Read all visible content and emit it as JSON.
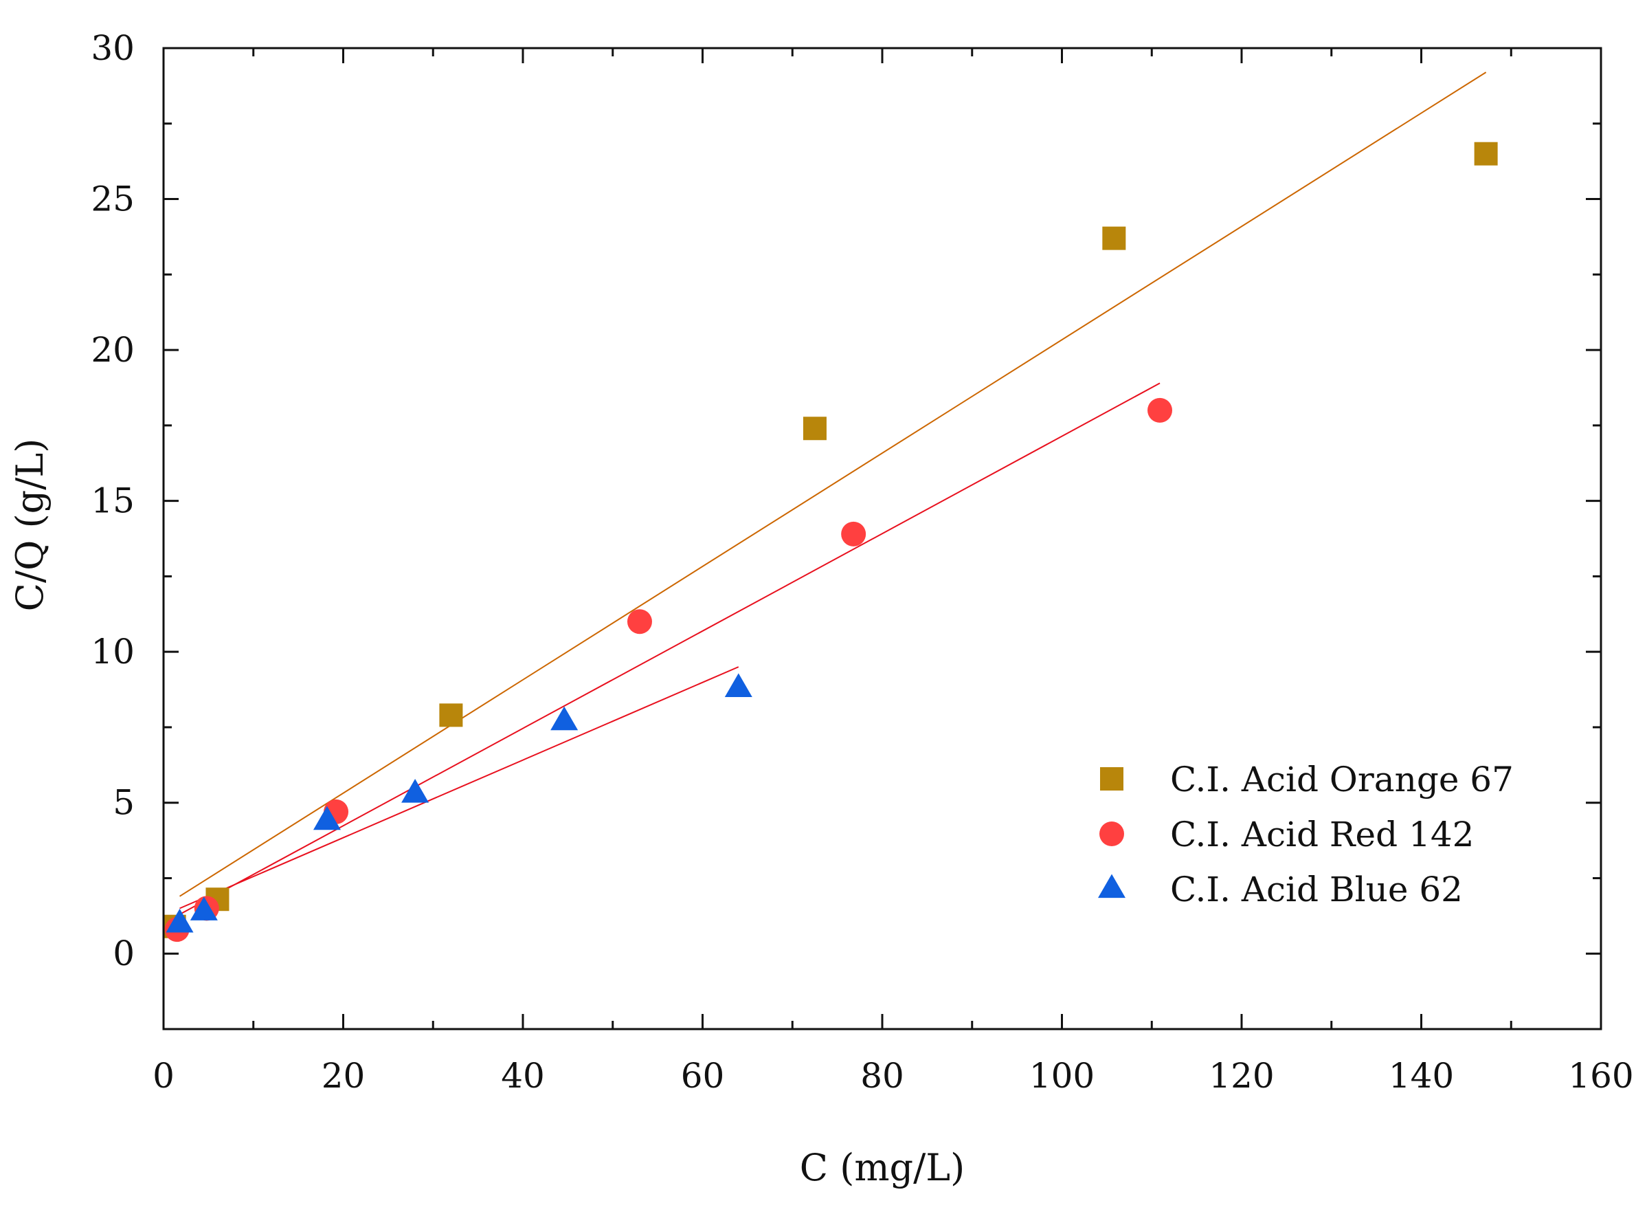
{
  "chart_data": {
    "type": "scatter",
    "title": "",
    "xlabel": "C (mg/L)",
    "ylabel": "C/Q (g/L)",
    "xlim": [
      0,
      160
    ],
    "ylim": [
      -2.5,
      30
    ],
    "xticks": [
      0,
      20,
      40,
      60,
      80,
      100,
      120,
      140,
      160
    ],
    "yticks": [
      0,
      5,
      10,
      15,
      20,
      25,
      30
    ],
    "grid": false,
    "legend_position": "right-middle",
    "series": [
      {
        "name": "C.I. Acid Orange 67",
        "marker": "square",
        "color": "#B8860B",
        "line_color": "#CC6600",
        "points": [
          [
            1.2,
            0.9
          ],
          [
            6.0,
            1.8
          ],
          [
            32.0,
            7.9
          ],
          [
            72.5,
            17.4
          ],
          [
            105.8,
            23.7
          ],
          [
            147.2,
            26.5
          ]
        ],
        "fit": [
          [
            1.8,
            1.9
          ],
          [
            147.2,
            29.2
          ]
        ]
      },
      {
        "name": "C.I. Acid Red 142",
        "marker": "circle",
        "color": "#FF4040",
        "line_color": "#E8101E",
        "points": [
          [
            1.5,
            0.8
          ],
          [
            4.8,
            1.5
          ],
          [
            19.2,
            4.7
          ],
          [
            53.0,
            11.0
          ],
          [
            76.8,
            13.9
          ],
          [
            110.9,
            18.0
          ]
        ],
        "fit": [
          [
            1.8,
            1.3
          ],
          [
            110.9,
            18.9
          ]
        ]
      },
      {
        "name": "C.I. Acid Blue 62",
        "marker": "triangle",
        "color": "#1060E0",
        "line_color": "#E8101E",
        "points": [
          [
            1.8,
            1.0
          ],
          [
            4.5,
            1.4
          ],
          [
            18.2,
            4.4
          ],
          [
            28.0,
            5.3
          ],
          [
            44.6,
            7.7
          ],
          [
            64.0,
            8.8
          ]
        ],
        "fit": [
          [
            1.8,
            1.5
          ],
          [
            64.0,
            9.5
          ]
        ]
      }
    ]
  }
}
